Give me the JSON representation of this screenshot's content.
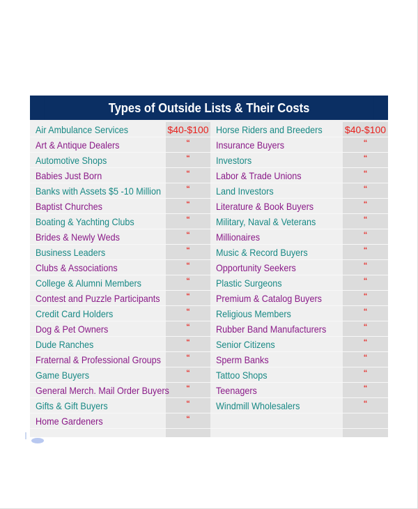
{
  "title": "Types of Outside Lists & Their Costs",
  "colors": {
    "header_bg": "#0b2f63",
    "teal": "#198985",
    "purple": "#8a1a88",
    "price": "#e8201c"
  },
  "left": [
    {
      "name": "Air Ambulance Services",
      "price": "$40-$100"
    },
    {
      "name": "Art & Antique Dealers",
      "price": "“"
    },
    {
      "name": "Automotive Shops",
      "price": "“"
    },
    {
      "name": "Babies Just Born",
      "price": "“"
    },
    {
      "name": "Banks with Assets $5 -10 Million",
      "price": "“"
    },
    {
      "name": "Baptist Churches",
      "price": "“"
    },
    {
      "name": "Boating & Yachting Clubs",
      "price": "“"
    },
    {
      "name": "Brides & Newly Weds",
      "price": "“"
    },
    {
      "name": "Business Leaders",
      "price": "“"
    },
    {
      "name": "Clubs & Associations",
      "price": "“"
    },
    {
      "name": "College & Alumni Members",
      "price": "“"
    },
    {
      "name": "Contest and Puzzle Participants",
      "price": "“"
    },
    {
      "name": "Credit Card Holders",
      "price": "“"
    },
    {
      "name": "Dog & Pet Owners",
      "price": "“"
    },
    {
      "name": "Dude Ranches",
      "price": "“"
    },
    {
      "name": "Fraternal & Professional Groups",
      "price": "“"
    },
    {
      "name": "Game Buyers",
      "price": "“"
    },
    {
      "name": "General Merch. Mail Order Buyers",
      "price": "“"
    },
    {
      "name": "Gifts & Gift Buyers",
      "price": "“"
    },
    {
      "name": "Home Gardeners",
      "price": "“"
    }
  ],
  "right": [
    {
      "name": "Horse Riders and Breeders",
      "price": "$40-$100"
    },
    {
      "name": "Insurance Buyers",
      "price": "“"
    },
    {
      "name": "Investors",
      "price": "“"
    },
    {
      "name": "Labor & Trade Unions",
      "price": "“"
    },
    {
      "name": "Land Investors",
      "price": "“"
    },
    {
      "name": "Literature & Book Buyers",
      "price": "“"
    },
    {
      "name": "Military, Naval & Veterans",
      "price": "“"
    },
    {
      "name": "Millionaires",
      "price": "“"
    },
    {
      "name": "Music & Record Buyers",
      "price": "“"
    },
    {
      "name": "Opportunity Seekers",
      "price": "“"
    },
    {
      "name": "Plastic Surgeons",
      "price": "“"
    },
    {
      "name": "Premium & Catalog Buyers",
      "price": "“"
    },
    {
      "name": "Religious Members",
      "price": "“"
    },
    {
      "name": "Rubber Band Manufacturers",
      "price": "“"
    },
    {
      "name": "Senior Citizens",
      "price": "“"
    },
    {
      "name": "Sperm Banks",
      "price": "“"
    },
    {
      "name": "Tattoo Shops",
      "price": "“"
    },
    {
      "name": "Teenagers",
      "price": "“"
    },
    {
      "name": "Windmill Wholesalers",
      "price": "“"
    },
    {
      "name": "",
      "price": ""
    }
  ]
}
